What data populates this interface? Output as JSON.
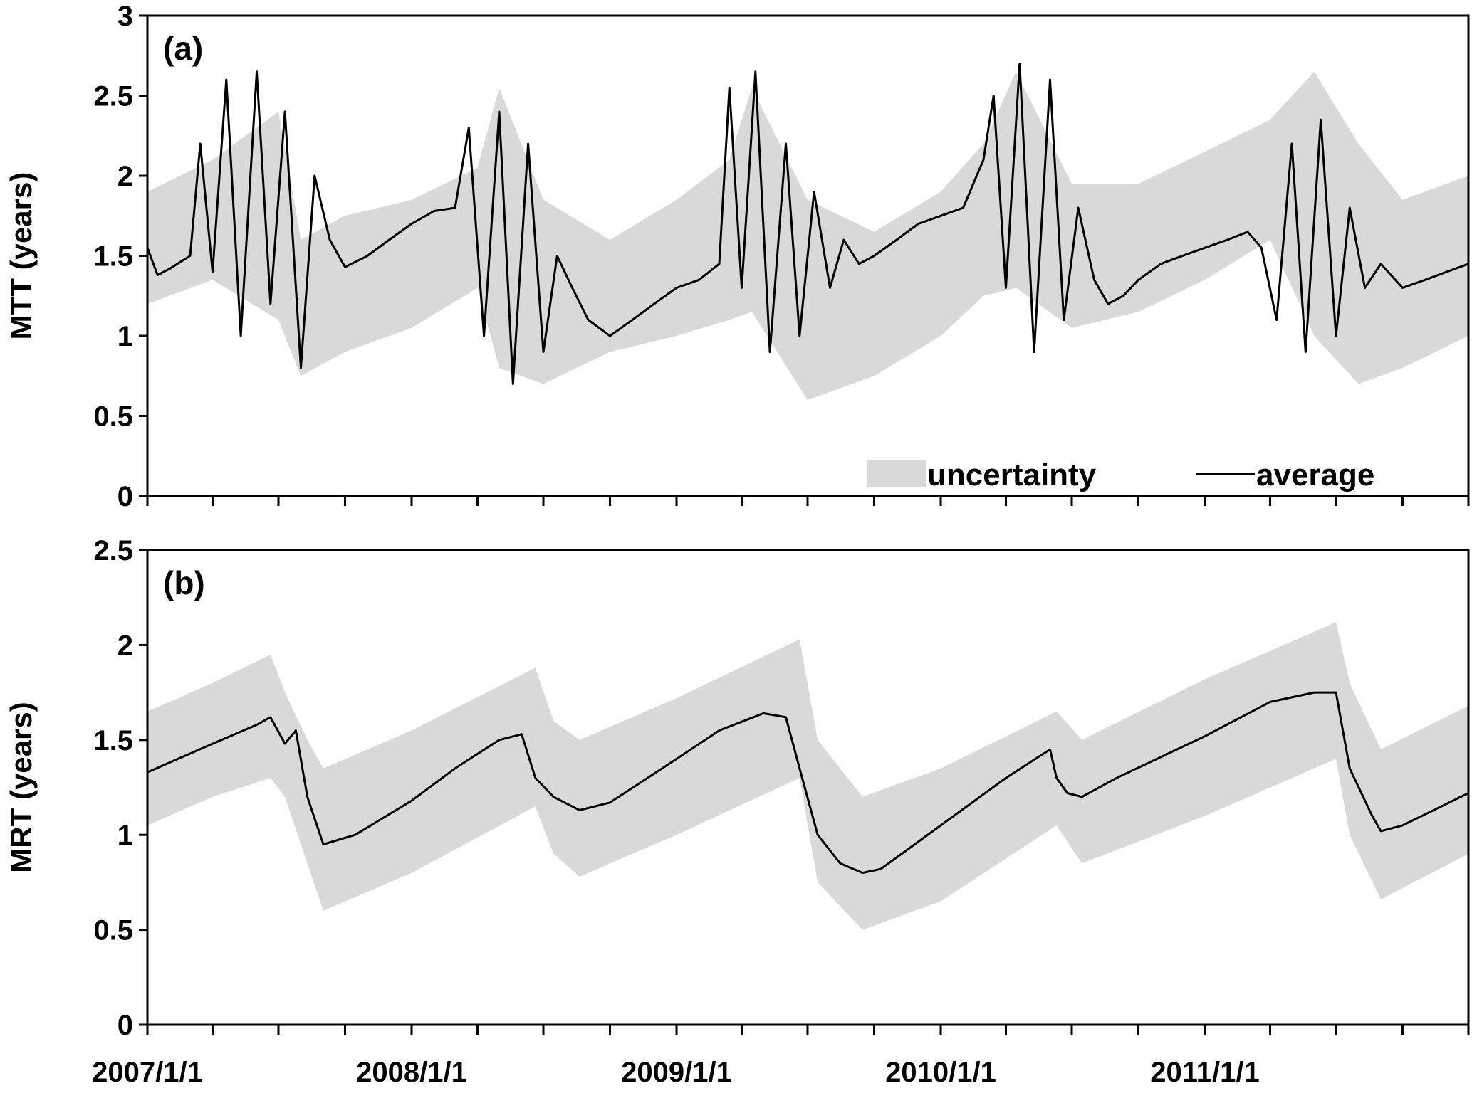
{
  "chart_data": [
    {
      "type": "area",
      "panel_label": "(a)",
      "ylabel": "MTT (years)",
      "ylim": [
        0,
        3
      ],
      "yticks": [
        "0",
        "0.5",
        "1",
        "1.5",
        "2",
        "2.5",
        "3"
      ],
      "xlim": [
        "2007-01-01",
        "2011-12-31"
      ],
      "x_tick_labels": [],
      "grid": false,
      "legend": {
        "placement": "bottom-right",
        "entries": [
          {
            "label": "uncertainty",
            "style": "band",
            "color": "#d9d9d9"
          },
          {
            "label": "average",
            "style": "line",
            "color": "#000000"
          }
        ]
      },
      "series": [
        {
          "name": "average",
          "x": [
            "2007-01-01",
            "2007-01-15",
            "2007-02-01",
            "2007-03-01",
            "2007-03-15",
            "2007-04-01",
            "2007-04-20",
            "2007-05-10",
            "2007-06-01",
            "2007-06-20",
            "2007-07-10",
            "2007-08-01",
            "2007-08-20",
            "2007-09-10",
            "2007-10-01",
            "2007-11-01",
            "2007-12-01",
            "2008-01-01",
            "2008-02-01",
            "2008-03-01",
            "2008-03-20",
            "2008-04-10",
            "2008-05-01",
            "2008-05-20",
            "2008-06-10",
            "2008-07-01",
            "2008-07-20",
            "2008-08-10",
            "2008-09-01",
            "2008-10-01",
            "2008-11-01",
            "2008-12-01",
            "2009-01-01",
            "2009-02-01",
            "2009-03-01",
            "2009-03-15",
            "2009-04-01",
            "2009-04-20",
            "2009-05-10",
            "2009-06-01",
            "2009-06-20",
            "2009-07-10",
            "2009-08-01",
            "2009-08-20",
            "2009-09-10",
            "2009-10-01",
            "2009-11-01",
            "2009-12-01",
            "2010-01-01",
            "2010-02-01",
            "2010-03-01",
            "2010-03-15",
            "2010-04-01",
            "2010-04-20",
            "2010-05-10",
            "2010-06-01",
            "2010-06-20",
            "2010-07-10",
            "2010-08-01",
            "2010-08-20",
            "2010-09-10",
            "2010-10-01",
            "2010-11-01",
            "2010-12-01",
            "2011-01-01",
            "2011-02-01",
            "2011-03-01",
            "2011-03-20",
            "2011-04-10",
            "2011-05-01",
            "2011-05-20",
            "2011-06-10",
            "2011-07-01",
            "2011-07-20",
            "2011-08-10",
            "2011-09-01",
            "2011-10-01",
            "2011-11-01",
            "2011-12-01",
            "2011-12-31"
          ],
          "values": [
            1.55,
            1.38,
            1.42,
            1.5,
            2.2,
            1.4,
            2.6,
            1.0,
            2.65,
            1.2,
            2.4,
            0.8,
            2.0,
            1.6,
            1.43,
            1.5,
            1.6,
            1.7,
            1.78,
            1.8,
            2.3,
            1.0,
            2.4,
            0.7,
            2.2,
            0.9,
            1.5,
            1.3,
            1.1,
            1.0,
            1.1,
            1.2,
            1.3,
            1.35,
            1.45,
            2.55,
            1.3,
            2.65,
            0.9,
            2.2,
            1.0,
            1.9,
            1.3,
            1.6,
            1.45,
            1.5,
            1.6,
            1.7,
            1.75,
            1.8,
            2.1,
            2.5,
            1.3,
            2.7,
            0.9,
            2.6,
            1.1,
            1.8,
            1.35,
            1.2,
            1.25,
            1.35,
            1.45,
            1.5,
            1.55,
            1.6,
            1.65,
            1.55,
            1.1,
            2.2,
            0.9,
            2.35,
            1.0,
            1.8,
            1.3,
            1.45,
            1.3,
            1.35,
            1.4,
            1.45
          ]
        },
        {
          "name": "uncertainty",
          "x": [
            "2007-01-01",
            "2007-04-01",
            "2007-07-01",
            "2007-08-01",
            "2007-10-01",
            "2008-01-01",
            "2008-04-01",
            "2008-05-01",
            "2008-07-01",
            "2008-10-01",
            "2009-01-01",
            "2009-03-15",
            "2009-04-15",
            "2009-07-01",
            "2009-10-01",
            "2010-01-01",
            "2010-03-01",
            "2010-04-15",
            "2010-07-01",
            "2010-10-01",
            "2011-01-01",
            "2011-04-01",
            "2011-06-01",
            "2011-08-01",
            "2011-10-01",
            "2011-12-31"
          ],
          "lower": [
            1.2,
            1.35,
            1.1,
            0.75,
            0.9,
            1.05,
            1.3,
            0.8,
            0.7,
            0.9,
            1.0,
            1.1,
            1.15,
            0.6,
            0.75,
            1.0,
            1.25,
            1.3,
            1.05,
            1.15,
            1.35,
            1.6,
            1.0,
            0.7,
            0.8,
            1.0
          ],
          "upper": [
            1.9,
            2.1,
            2.4,
            1.6,
            1.75,
            1.85,
            2.05,
            2.55,
            1.85,
            1.6,
            1.85,
            2.1,
            2.55,
            1.85,
            1.65,
            1.9,
            2.2,
            2.65,
            1.95,
            1.95,
            2.15,
            2.35,
            2.65,
            2.2,
            1.85,
            2.0
          ]
        }
      ]
    },
    {
      "type": "area",
      "panel_label": "(b)",
      "ylabel": "MRT (years)",
      "ylim": [
        0,
        2.5
      ],
      "yticks": [
        "0",
        "0.5",
        "1",
        "1.5",
        "2",
        "2.5"
      ],
      "xlim": [
        "2007-01-01",
        "2011-12-31"
      ],
      "x_tick_labels": [
        "2007/1/1",
        "2008/1/1",
        "2009/1/1",
        "2010/1/1",
        "2011/1/1"
      ],
      "grid": false,
      "series": [
        {
          "name": "average",
          "x": [
            "2007-01-01",
            "2007-04-01",
            "2007-06-01",
            "2007-06-20",
            "2007-07-10",
            "2007-07-25",
            "2007-08-10",
            "2007-09-01",
            "2007-10-15",
            "2008-01-01",
            "2008-03-01",
            "2008-05-01",
            "2008-06-01",
            "2008-06-20",
            "2008-07-15",
            "2008-08-20",
            "2008-10-01",
            "2009-01-01",
            "2009-03-01",
            "2009-05-01",
            "2009-06-01",
            "2009-06-20",
            "2009-07-15",
            "2009-08-15",
            "2009-09-15",
            "2009-10-10",
            "2010-01-01",
            "2010-04-01",
            "2010-06-01",
            "2010-06-10",
            "2010-06-25",
            "2010-07-15",
            "2010-09-01",
            "2011-01-01",
            "2011-04-01",
            "2011-06-01",
            "2011-07-01",
            "2011-07-20",
            "2011-08-20",
            "2011-09-01",
            "2011-10-01",
            "2011-12-31"
          ],
          "values": [
            1.33,
            1.48,
            1.58,
            1.62,
            1.48,
            1.55,
            1.2,
            0.95,
            1.0,
            1.18,
            1.35,
            1.5,
            1.53,
            1.3,
            1.2,
            1.13,
            1.17,
            1.4,
            1.55,
            1.64,
            1.62,
            1.35,
            1.0,
            0.85,
            0.8,
            0.82,
            1.05,
            1.3,
            1.45,
            1.3,
            1.22,
            1.2,
            1.3,
            1.52,
            1.7,
            1.75,
            1.75,
            1.35,
            1.1,
            1.02,
            1.05,
            1.22
          ]
        },
        {
          "name": "uncertainty",
          "x": [
            "2007-01-01",
            "2007-04-01",
            "2007-06-20",
            "2007-07-10",
            "2007-08-10",
            "2007-09-01",
            "2008-01-01",
            "2008-06-20",
            "2008-07-15",
            "2008-08-20",
            "2009-01-01",
            "2009-06-20",
            "2009-07-15",
            "2009-09-15",
            "2010-01-01",
            "2010-06-10",
            "2010-07-15",
            "2011-01-01",
            "2011-07-01",
            "2011-07-20",
            "2011-09-01",
            "2011-12-31"
          ],
          "lower": [
            1.05,
            1.2,
            1.3,
            1.2,
            0.85,
            0.6,
            0.8,
            1.15,
            0.9,
            0.78,
            1.0,
            1.3,
            0.75,
            0.5,
            0.65,
            1.05,
            0.85,
            1.1,
            1.4,
            1.0,
            0.66,
            0.9
          ],
          "upper": [
            1.65,
            1.8,
            1.95,
            1.75,
            1.5,
            1.35,
            1.55,
            1.88,
            1.6,
            1.5,
            1.72,
            2.03,
            1.5,
            1.2,
            1.35,
            1.65,
            1.5,
            1.82,
            2.12,
            1.8,
            1.45,
            1.68
          ]
        }
      ]
    }
  ]
}
